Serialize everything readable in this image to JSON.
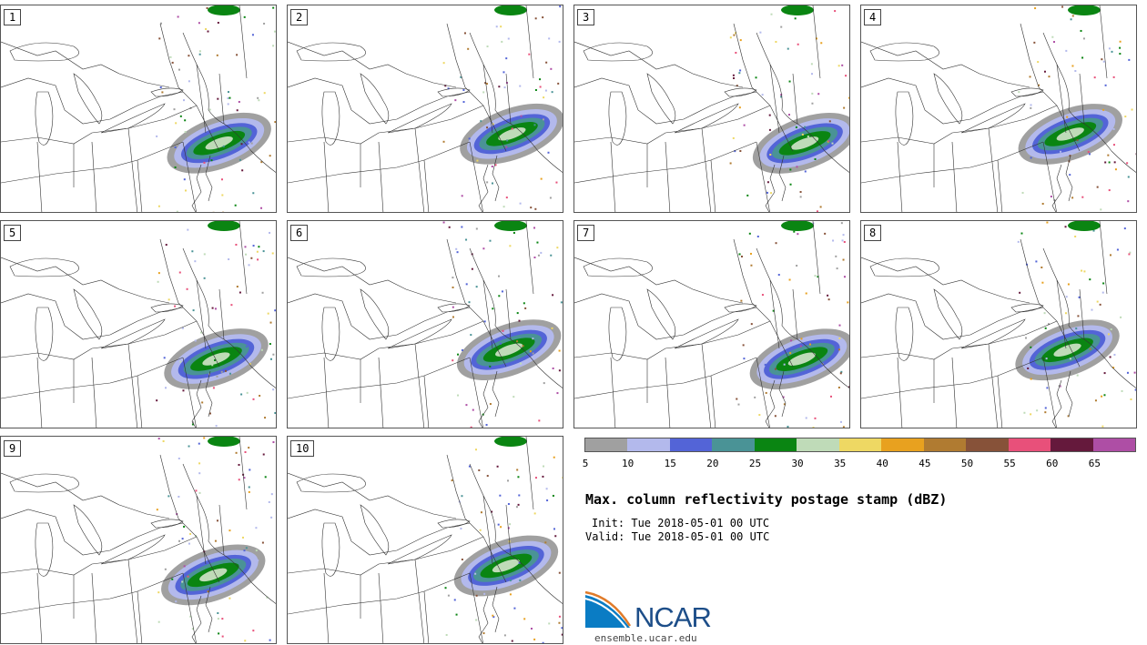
{
  "panels": [
    {
      "label": "1"
    },
    {
      "label": "2"
    },
    {
      "label": "3"
    },
    {
      "label": "4"
    },
    {
      "label": "5"
    },
    {
      "label": "6"
    },
    {
      "label": "7"
    },
    {
      "label": "8"
    },
    {
      "label": "9"
    },
    {
      "label": "10"
    }
  ],
  "colorbar": {
    "colors": [
      "#a0a0a0",
      "#b3b9ec",
      "#5364d7",
      "#4a9396",
      "#0a8512",
      "#bfdbb8",
      "#eed863",
      "#e8a11f",
      "#b07b31",
      "#875239",
      "#e8507a",
      "#65193c",
      "#ae4ea5"
    ],
    "ticks": [
      "5",
      "10",
      "15",
      "20",
      "25",
      "30",
      "35",
      "40",
      "45",
      "50",
      "55",
      "60",
      "65"
    ]
  },
  "title": "Max. column reflectivity postage stamp (dBZ)",
  "init": "Init: Tue 2018-05-01 00 UTC",
  "valid": "Valid: Tue 2018-05-01 00 UTC",
  "logo": {
    "text": "NCAR"
  },
  "site": "ensemble.ucar.edu"
}
